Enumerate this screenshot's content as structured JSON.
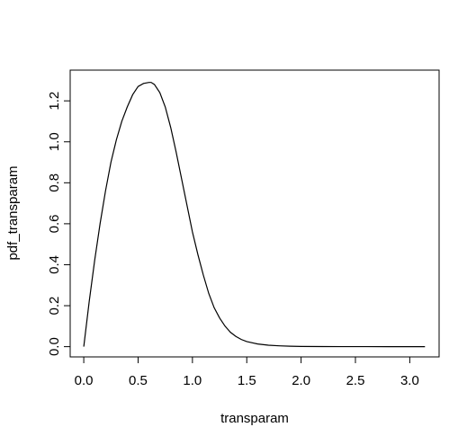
{
  "chart_data": {
    "type": "line",
    "xlabel": "transparam",
    "ylabel": "pdf_transparam",
    "xlim": [
      -0.125,
      3.27
    ],
    "ylim": [
      -0.05,
      1.35
    ],
    "xticks": [
      "0.0",
      "0.5",
      "1.0",
      "1.5",
      "2.0",
      "2.5",
      "3.0"
    ],
    "yticks": [
      "0.0",
      "0.2",
      "0.4",
      "0.6",
      "0.8",
      "1.0",
      "1.2"
    ],
    "grid": false,
    "legend": "none",
    "line_color": "#000000",
    "series": [
      {
        "x": [
          0.0,
          0.05,
          0.1,
          0.15,
          0.2,
          0.25,
          0.3,
          0.35,
          0.4,
          0.45,
          0.5,
          0.55,
          0.6,
          0.62,
          0.65,
          0.7,
          0.75,
          0.8,
          0.85,
          0.9,
          0.95,
          1.0,
          1.05,
          1.1,
          1.15,
          1.2,
          1.25,
          1.3,
          1.35,
          1.4,
          1.45,
          1.5,
          1.6,
          1.7,
          1.8,
          1.9,
          2.0,
          2.2,
          2.4,
          2.6,
          2.8,
          3.0,
          3.14
        ],
        "y": [
          0.0,
          0.22,
          0.42,
          0.6,
          0.76,
          0.9,
          1.01,
          1.1,
          1.17,
          1.23,
          1.27,
          1.285,
          1.29,
          1.29,
          1.28,
          1.24,
          1.17,
          1.07,
          0.95,
          0.82,
          0.69,
          0.56,
          0.45,
          0.35,
          0.26,
          0.19,
          0.14,
          0.1,
          0.07,
          0.05,
          0.035,
          0.025,
          0.013,
          0.007,
          0.004,
          0.002,
          0.001,
          0.0005,
          0.0002,
          0.0001,
          0.0,
          0.0,
          0.0
        ]
      }
    ]
  }
}
